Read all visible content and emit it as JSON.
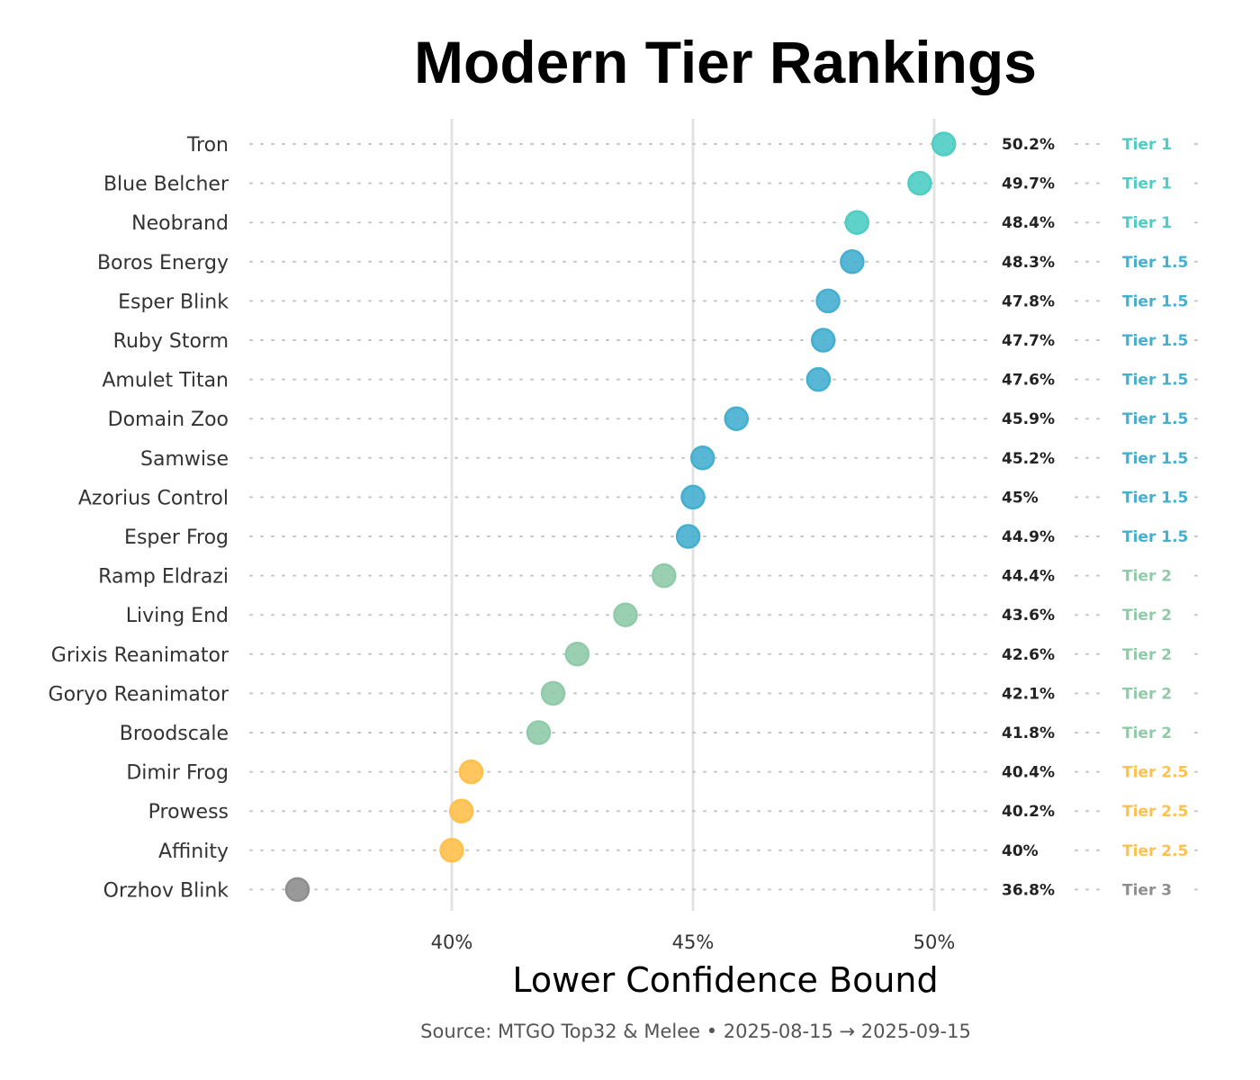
{
  "chart_data": {
    "type": "scatter",
    "title": "Modern Tier Rankings",
    "xlabel": "Lower Confidence Bound",
    "ylabel": "",
    "xlim": [
      36.0,
      51.0
    ],
    "xticks": [
      40,
      45,
      50
    ],
    "xtick_labels": [
      "40%",
      "45%",
      "50%"
    ],
    "grid": "vertical major gridlines at ticks; dotted guide line per row",
    "source": "Source: MTGO Top32 & Melee  •  2025-08-15 → 2025-09-15",
    "tier_colors": {
      "Tier 1": "#4ECDC4",
      "Tier 1.5": "#45AFD0",
      "Tier 2": "#8FCBA8",
      "Tier 2.5": "#FFC04D",
      "Tier 3": "#8E8E8E"
    },
    "rows": [
      {
        "deck": "Tron",
        "value": 50.2,
        "value_label": "50.2%",
        "tier": "Tier 1"
      },
      {
        "deck": "Blue Belcher",
        "value": 49.7,
        "value_label": "49.7%",
        "tier": "Tier 1"
      },
      {
        "deck": "Neobrand",
        "value": 48.4,
        "value_label": "48.4%",
        "tier": "Tier 1"
      },
      {
        "deck": "Boros Energy",
        "value": 48.3,
        "value_label": "48.3%",
        "tier": "Tier 1.5"
      },
      {
        "deck": "Esper Blink",
        "value": 47.8,
        "value_label": "47.8%",
        "tier": "Tier 1.5"
      },
      {
        "deck": "Ruby Storm",
        "value": 47.7,
        "value_label": "47.7%",
        "tier": "Tier 1.5"
      },
      {
        "deck": "Amulet Titan",
        "value": 47.6,
        "value_label": "47.6%",
        "tier": "Tier 1.5"
      },
      {
        "deck": "Domain Zoo",
        "value": 45.9,
        "value_label": "45.9%",
        "tier": "Tier 1.5"
      },
      {
        "deck": "Samwise",
        "value": 45.2,
        "value_label": "45.2%",
        "tier": "Tier 1.5"
      },
      {
        "deck": "Azorius Control",
        "value": 45.0,
        "value_label": "45%",
        "tier": "Tier 1.5"
      },
      {
        "deck": "Esper Frog",
        "value": 44.9,
        "value_label": "44.9%",
        "tier": "Tier 1.5"
      },
      {
        "deck": "Ramp Eldrazi",
        "value": 44.4,
        "value_label": "44.4%",
        "tier": "Tier 2"
      },
      {
        "deck": "Living End",
        "value": 43.6,
        "value_label": "43.6%",
        "tier": "Tier 2"
      },
      {
        "deck": "Grixis Reanimator",
        "value": 42.6,
        "value_label": "42.6%",
        "tier": "Tier 2"
      },
      {
        "deck": "Goryo Reanimator",
        "value": 42.1,
        "value_label": "42.1%",
        "tier": "Tier 2"
      },
      {
        "deck": "Broodscale",
        "value": 41.8,
        "value_label": "41.8%",
        "tier": "Tier 2"
      },
      {
        "deck": "Dimir Frog",
        "value": 40.4,
        "value_label": "40.4%",
        "tier": "Tier 2.5"
      },
      {
        "deck": "Prowess",
        "value": 40.2,
        "value_label": "40.2%",
        "tier": "Tier 2.5"
      },
      {
        "deck": "Affinity",
        "value": 40.0,
        "value_label": "40%",
        "tier": "Tier 2.5"
      },
      {
        "deck": "Orzhov Blink",
        "value": 36.8,
        "value_label": "36.8%",
        "tier": "Tier 3"
      }
    ]
  }
}
